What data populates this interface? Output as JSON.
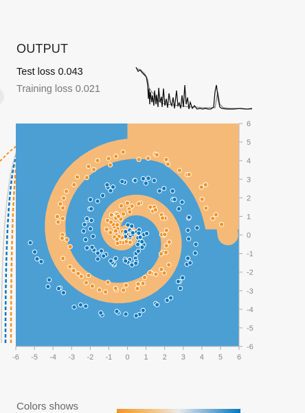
{
  "output": {
    "title": "OUTPUT",
    "test_loss_label": "Test loss",
    "test_loss_value": "0.043",
    "training_loss_label": "Training loss",
    "training_loss_value": "0.021"
  },
  "legend": {
    "colors_label": "Colors shows"
  },
  "colors": {
    "positive": "#4b9fd3",
    "negative": "#f6ba78",
    "point_positive": "#0877bd",
    "point_negative": "#f59322"
  },
  "chart_data": {
    "type": "scatter",
    "title": "",
    "xlabel": "",
    "ylabel": "",
    "xlim": [
      -6,
      6
    ],
    "ylim": [
      -6,
      6
    ],
    "x_ticks": [
      "-6",
      "-5",
      "-4",
      "-3",
      "-2",
      "-1",
      "0",
      "1",
      "2",
      "3",
      "4",
      "5",
      "6"
    ],
    "y_ticks": [
      "6",
      "5",
      "4",
      "3",
      "2",
      "1",
      "0",
      "-1",
      "-2",
      "-3",
      "-4",
      "-5",
      "-6"
    ],
    "series": [
      {
        "class": "positive",
        "description": "spiral arm A (blue)"
      },
      {
        "class": "negative",
        "description": "spiral arm B (orange)"
      }
    ],
    "background": "decision regions (blue / orange)",
    "grid": false
  }
}
